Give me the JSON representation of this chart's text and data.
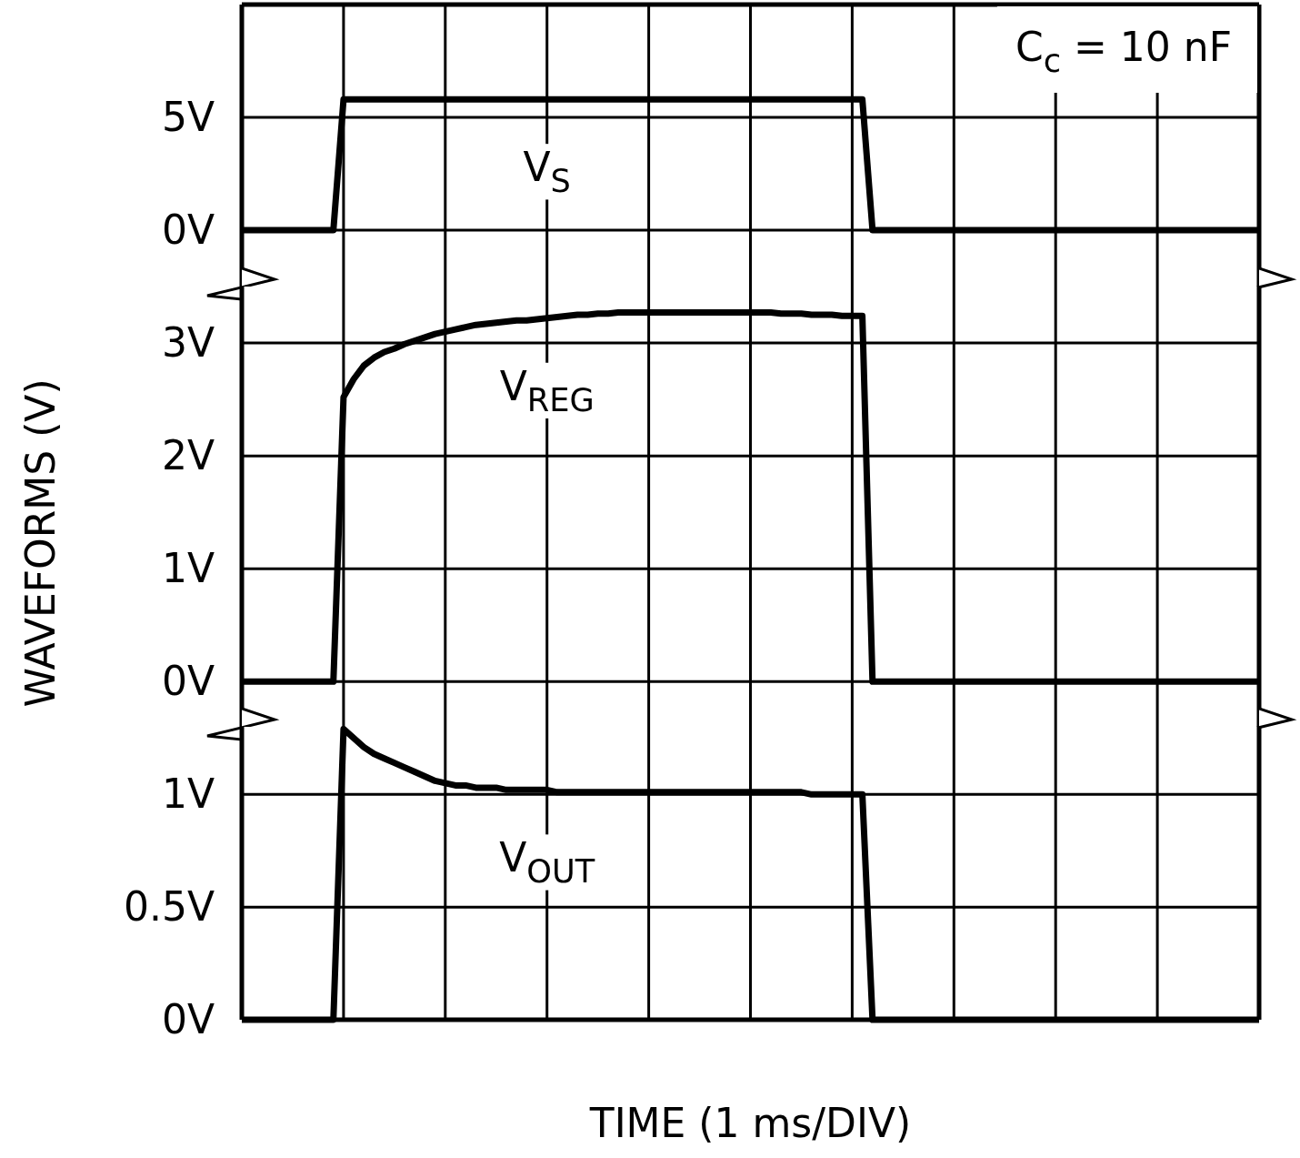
{
  "chart_data": [
    {
      "type": "line",
      "annotations": [
        "C$_{c}$ = 10 nF"
      ],
      "categories": [
        null,
        null,
        null,
        null,
        null,
        null,
        null,
        null,
        null,
        null,
        null,
        null,
        null,
        null,
        null,
        null,
        null,
        null,
        null,
        null,
        null,
        null,
        null,
        null,
        null,
        null,
        null,
        null,
        null,
        null,
        null,
        null,
        null,
        null,
        null,
        null,
        null,
        null,
        null,
        null,
        null,
        null,
        null,
        null,
        null,
        null,
        null,
        null,
        null,
        null,
        null,
        null,
        null,
        null,
        null,
        null,
        null,
        null,
        null,
        null,
        null,
        null,
        null,
        null,
        null,
        null,
        null,
        null,
        null,
        null,
        null,
        null,
        null,
        null,
        null,
        null,
        null,
        null,
        null,
        null,
        null,
        null,
        null,
        null,
        null,
        null,
        null,
        null,
        null,
        null,
        null,
        null,
        null,
        null,
        null,
        null,
        null,
        null,
        null,
        null,
        null
      ],
      "ylim": [
        -2.5,
        10
      ],
      "yticks": [
        {
          "value": 0,
          "label": "0V"
        },
        {
          "value": 5,
          "label": "5V"
        }
      ],
      "grid": true,
      "marker": "none",
      "line_style": "solid",
      "series": [
        {
          "name": "V$_{S}$",
          "color": "#000000",
          "values": [
            0,
            0,
            0,
            0,
            0,
            0,
            0,
            0,
            0,
            0,
            5.8,
            5.8,
            5.8,
            5.8,
            5.8,
            5.8,
            5.8,
            5.8,
            5.8,
            5.8,
            5.8,
            5.8,
            5.8,
            5.8,
            5.8,
            5.8,
            5.8,
            5.8,
            5.8,
            5.8,
            5.8,
            5.8,
            5.8,
            5.8,
            5.8,
            5.8,
            5.8,
            5.8,
            5.8,
            5.8,
            5.8,
            5.8,
            5.8,
            5.8,
            5.8,
            5.8,
            5.8,
            5.8,
            5.8,
            5.8,
            5.8,
            5.8,
            5.8,
            5.8,
            5.8,
            5.8,
            5.8,
            5.8,
            5.8,
            5.8,
            5.8,
            5.8,
            0,
            0,
            0,
            0,
            0,
            0,
            0,
            0,
            0,
            0,
            0,
            0,
            0,
            0,
            0,
            0,
            0,
            0,
            0,
            0,
            0,
            0,
            0,
            0,
            0,
            0,
            0,
            0,
            0,
            0,
            0,
            0,
            0,
            0,
            0,
            0,
            0,
            0,
            0
          ]
        }
      ]
    },
    {
      "type": "line",
      "ylabel": "WAVEFORMS (V)",
      "categories": [
        null,
        null,
        null,
        null,
        null,
        null,
        null,
        null,
        null,
        null,
        null,
        null,
        null,
        null,
        null,
        null,
        null,
        null,
        null,
        null,
        null,
        null,
        null,
        null,
        null,
        null,
        null,
        null,
        null,
        null,
        null,
        null,
        null,
        null,
        null,
        null,
        null,
        null,
        null,
        null,
        null,
        null,
        null,
        null,
        null,
        null,
        null,
        null,
        null,
        null,
        null,
        null,
        null,
        null,
        null,
        null,
        null,
        null,
        null,
        null,
        null,
        null,
        null,
        null,
        null,
        null,
        null,
        null,
        null,
        null,
        null,
        null,
        null,
        null,
        null,
        null,
        null,
        null,
        null,
        null,
        null,
        null,
        null,
        null,
        null,
        null,
        null,
        null,
        null,
        null,
        null,
        null,
        null,
        null,
        null,
        null,
        null,
        null,
        null,
        null,
        null
      ],
      "ylim": [
        -0.4,
        3.5
      ],
      "yticks": [
        {
          "value": 0,
          "label": "0V"
        },
        {
          "value": 1,
          "label": "1V"
        },
        {
          "value": 2,
          "label": "2V"
        },
        {
          "value": 3,
          "label": "3V"
        }
      ],
      "grid": true,
      "marker": "none",
      "line_style": "solid",
      "series": [
        {
          "name": "V$_{REG}$",
          "color": "#000000",
          "values": [
            0,
            0,
            0,
            0,
            0,
            0,
            0,
            0,
            0,
            0,
            2.52,
            2.68,
            2.8,
            2.87,
            2.92,
            2.95,
            2.99,
            3.02,
            3.05,
            3.08,
            3.1,
            3.12,
            3.14,
            3.16,
            3.17,
            3.18,
            3.19,
            3.2,
            3.2,
            3.21,
            3.22,
            3.23,
            3.24,
            3.25,
            3.25,
            3.26,
            3.26,
            3.27,
            3.27,
            3.27,
            3.27,
            3.27,
            3.27,
            3.27,
            3.27,
            3.27,
            3.27,
            3.27,
            3.27,
            3.27,
            3.27,
            3.27,
            3.27,
            3.26,
            3.26,
            3.26,
            3.25,
            3.25,
            3.25,
            3.24,
            3.24,
            3.24,
            0,
            0,
            0,
            0,
            0,
            0,
            0,
            0,
            0,
            0,
            0,
            0,
            0,
            0,
            0,
            0,
            0,
            0,
            0,
            0,
            0,
            0,
            0,
            0,
            0,
            0,
            0,
            0,
            0,
            0,
            0,
            0,
            0,
            0,
            0,
            0,
            0,
            0,
            0
          ]
        }
      ]
    },
    {
      "type": "line",
      "xlabel": "TIME (1 ms/DIV)",
      "categories": [
        null,
        null,
        null,
        null,
        null,
        null,
        null,
        null,
        null,
        null,
        null,
        null,
        null,
        null,
        null,
        null,
        null,
        null,
        null,
        null,
        null,
        null,
        null,
        null,
        null,
        null,
        null,
        null,
        null,
        null,
        null,
        null,
        null,
        null,
        null,
        null,
        null,
        null,
        null,
        null,
        null,
        null,
        null,
        null,
        null,
        null,
        null,
        null,
        null,
        null,
        null,
        null,
        null,
        null,
        null,
        null,
        null,
        null,
        null,
        null,
        null,
        null,
        null,
        null,
        null,
        null,
        null,
        null,
        null,
        null,
        null,
        null,
        null,
        null,
        null,
        null,
        null,
        null,
        null,
        null,
        null,
        null,
        null,
        null,
        null,
        null,
        null,
        null,
        null,
        null,
        null,
        null,
        null,
        null,
        null,
        null,
        null,
        null,
        null,
        null,
        null
      ],
      "ylim": [
        0,
        1.3
      ],
      "yticks": [
        {
          "value": 0,
          "label": "0V"
        },
        {
          "value": 0.5,
          "label": "0.5V"
        },
        {
          "value": 1,
          "label": "1V"
        }
      ],
      "grid": true,
      "marker": "none",
      "line_style": "solid",
      "series": [
        {
          "name": "V$_{OUT}$",
          "color": "#000000",
          "values": [
            0,
            0,
            0,
            0,
            0,
            0,
            0,
            0,
            0,
            0,
            1.29,
            1.25,
            1.21,
            1.18,
            1.16,
            1.14,
            1.12,
            1.1,
            1.08,
            1.06,
            1.05,
            1.04,
            1.04,
            1.03,
            1.03,
            1.03,
            1.02,
            1.02,
            1.02,
            1.02,
            1.02,
            1.01,
            1.01,
            1.01,
            1.01,
            1.01,
            1.01,
            1.01,
            1.01,
            1.01,
            1.01,
            1.01,
            1.01,
            1.01,
            1.01,
            1.01,
            1.01,
            1.01,
            1.01,
            1.01,
            1.01,
            1.01,
            1.01,
            1.01,
            1.01,
            1.01,
            1.0,
            1.0,
            1.0,
            1.0,
            1.0,
            1.0,
            0,
            0,
            0,
            0,
            0,
            0,
            0,
            0,
            0,
            0,
            0,
            0,
            0,
            0,
            0,
            0,
            0,
            0,
            0,
            0,
            0,
            0,
            0,
            0,
            0,
            0,
            0,
            0,
            0,
            0,
            0,
            0,
            0,
            0,
            0,
            0,
            0,
            0,
            0
          ]
        }
      ]
    }
  ]
}
